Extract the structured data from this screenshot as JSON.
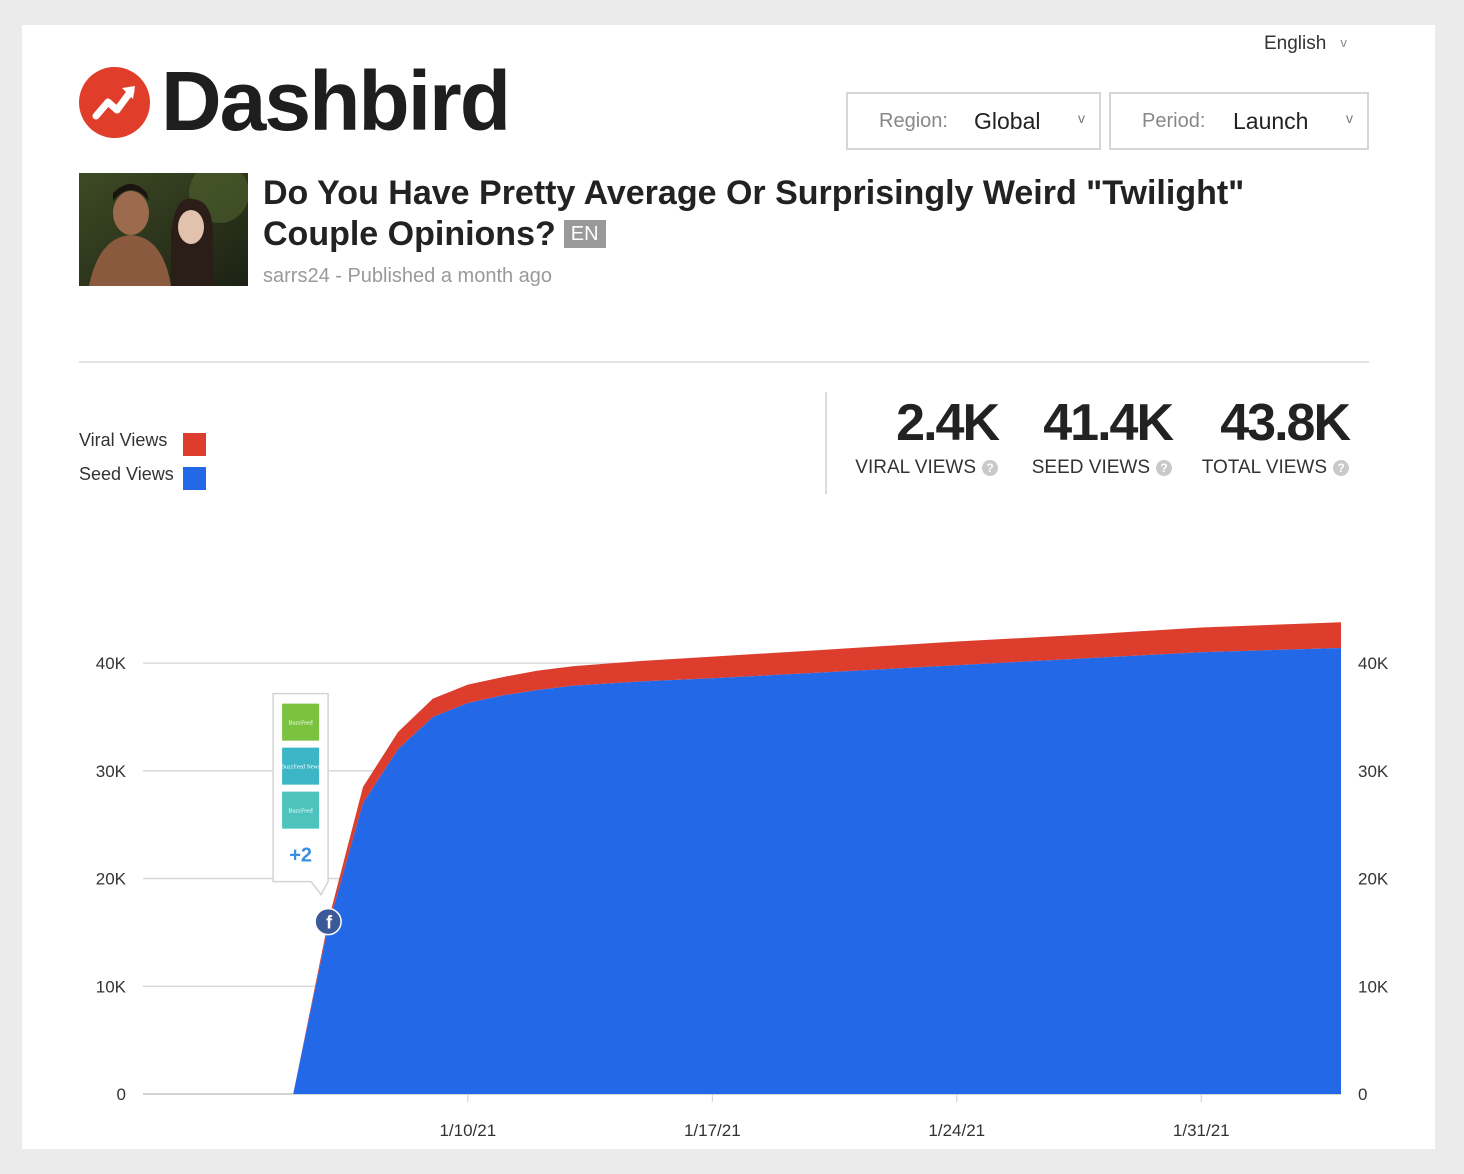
{
  "header": {
    "language": "English",
    "brand": "Dashbird",
    "region": {
      "label": "Region:",
      "value": "Global"
    },
    "period": {
      "label": "Period:",
      "value": "Launch"
    }
  },
  "article": {
    "title": "Do You Have Pretty Average Or Surprisingly Weird \"Twilight\" Couple Opinions?",
    "lang_badge": "EN",
    "meta": "sarrs24 - Published a month ago"
  },
  "legend": [
    {
      "label": "Viral Views",
      "color": "#dd3d2d"
    },
    {
      "label": "Seed Views",
      "color": "#2368e6"
    }
  ],
  "stats": [
    {
      "value": "2.4K",
      "caption": "VIRAL VIEWS"
    },
    {
      "value": "41.4K",
      "caption": "SEED VIEWS"
    },
    {
      "value": "43.8K",
      "caption": "TOTAL VIEWS"
    }
  ],
  "tooltip": {
    "more": "+2",
    "icons": [
      "buzzfeed-geeky-icon",
      "buzzfeed-news-icon",
      "buzzfeed-community-icon"
    ]
  },
  "chart_data": {
    "type": "area",
    "stacked": true,
    "x_unit": "date",
    "x": [
      "2021-01-05",
      "2021-01-06",
      "2021-01-07",
      "2021-01-08",
      "2021-01-09",
      "2021-01-10",
      "2021-01-11",
      "2021-01-12",
      "2021-01-13",
      "2021-01-15",
      "2021-01-17",
      "2021-01-20",
      "2021-01-24",
      "2021-01-28",
      "2021-01-31",
      "2021-02-04"
    ],
    "series": [
      {
        "name": "Seed Views",
        "color": "#2368e6",
        "values": [
          0,
          15500,
          27000,
          32000,
          35000,
          36300,
          37000,
          37500,
          37900,
          38300,
          38600,
          39100,
          39800,
          40500,
          41000,
          41400
        ]
      },
      {
        "name": "Viral Views",
        "color": "#dd3d2d",
        "values": [
          0,
          500,
          1500,
          1600,
          1700,
          1700,
          1700,
          1800,
          1800,
          1900,
          2000,
          2100,
          2200,
          2200,
          2300,
          2400
        ]
      }
    ],
    "ylim": [
      0,
      44000
    ],
    "yticks": [
      0,
      10000,
      20000,
      30000,
      40000
    ],
    "ytick_labels": [
      "0",
      "10K",
      "20K",
      "30K",
      "40K"
    ],
    "xticks": [
      "2021-01-10",
      "2021-01-17",
      "2021-01-24",
      "2021-01-31"
    ],
    "xtick_labels": [
      "1/10/21",
      "1/17/21",
      "1/24/21",
      "1/31/21"
    ],
    "grid": true,
    "annotation": {
      "x": "2021-01-06",
      "y": 16000,
      "icon": "facebook-icon"
    }
  }
}
